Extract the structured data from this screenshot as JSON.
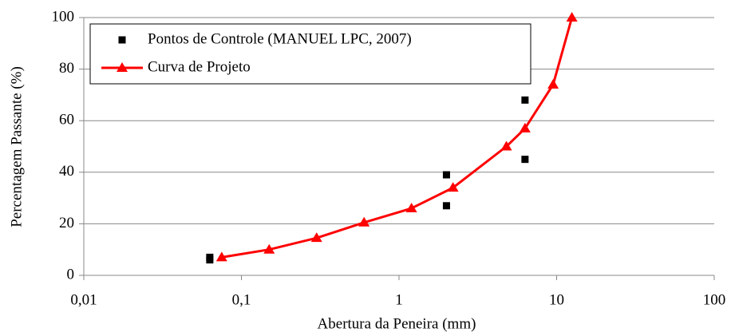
{
  "chart_data": {
    "type": "line",
    "x_label": "Abertura da Peneira (mm)",
    "y_label": "Percentagem Passante (%)",
    "xscale": "log",
    "xlim": [
      0.01,
      100
    ],
    "xticks": [
      {
        "value": 0.01,
        "label": "0,01"
      },
      {
        "value": 0.1,
        "label": "0,1"
      },
      1,
      10,
      100
    ],
    "ylim": [
      0,
      100
    ],
    "yticks": [
      0,
      20,
      40,
      60,
      80,
      100
    ],
    "grid": true,
    "legend": "upper left",
    "series": [
      {
        "name": "Pontos de Controle (MANUEL LPC, 2007)",
        "type": "scatter",
        "marker": "square",
        "color": "#000000",
        "x": [
          0.063,
          0.063,
          2,
          2,
          6.3,
          6.3
        ],
        "values": [
          7,
          6,
          39,
          27,
          68,
          45
        ]
      },
      {
        "name": "Curva de Projeto",
        "type": "line",
        "marker": "triangle",
        "color": "#ff0000",
        "x": [
          0.075,
          0.15,
          0.3,
          0.6,
          1.2,
          2.2,
          4.8,
          6.3,
          9.5,
          12.5
        ],
        "values": [
          7,
          10,
          14.5,
          20.5,
          26,
          34,
          50,
          57,
          74,
          100
        ]
      }
    ]
  }
}
